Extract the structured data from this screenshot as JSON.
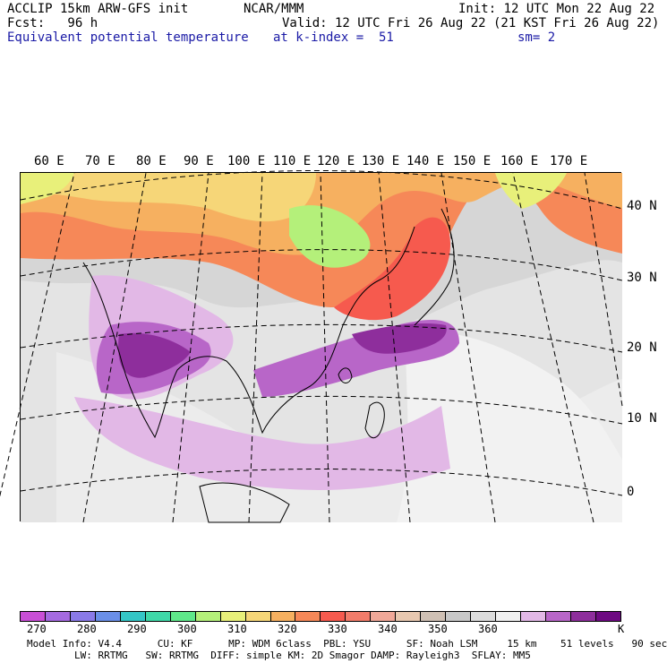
{
  "header": {
    "line1_left": "ACCLIP 15km ARW-GFS init",
    "line1_mid": "NCAR/MMM",
    "line1_right": "Init: 12 UTC Mon 22 Aug 22",
    "line2_left": "Fcst:   96 h",
    "line2_right": "Valid: 12 UTC Fri 26 Aug 22 (21 KST Fri 26 Aug 22)",
    "line3_left": "Equivalent potential temperature",
    "line3_mid": "at k-index =  51",
    "line3_right": "sm= 2"
  },
  "map": {
    "longitude_labels": [
      "60 E",
      "70 E",
      "80 E",
      "90 E",
      "100 E",
      "110 E",
      "120 E",
      "130 E",
      "140 E",
      "150 E",
      "160 E",
      "170 E"
    ],
    "latitude_labels": [
      "40 N",
      "30 N",
      "20 N",
      "10 N",
      "0"
    ]
  },
  "colorbar": {
    "colors": [
      "#c94fd6",
      "#a56ae0",
      "#8a7ae8",
      "#6a8fe8",
      "#34c6c6",
      "#3fd8a8",
      "#5fe88a",
      "#b4f07a",
      "#e8f07a",
      "#f6d678",
      "#f6b060",
      "#f68858",
      "#f65a4e",
      "#f27c6a",
      "#f0a898",
      "#e8c8b0",
      "#cfc0b4",
      "#c8c8c8",
      "#dcdcdc",
      "#f0f0f0",
      "#e2b8e6",
      "#b866c8",
      "#8e2e9c",
      "#6e0a82"
    ],
    "labels": [
      "270",
      "280",
      "290",
      "300",
      "310",
      "320",
      "330",
      "340",
      "350",
      "360",
      "K"
    ]
  },
  "footer": {
    "line1": "Model Info: V4.4      CU: KF      MP: WDM 6class  PBL: YSU      SF: Noah LSM     15 km    51 levels   90 sec",
    "line2": "        LW: RRTMG   SW: RRTMG  DIFF: simple KM: 2D Smagor DAMP: Rayleigh3  SFLAY: MM5"
  }
}
